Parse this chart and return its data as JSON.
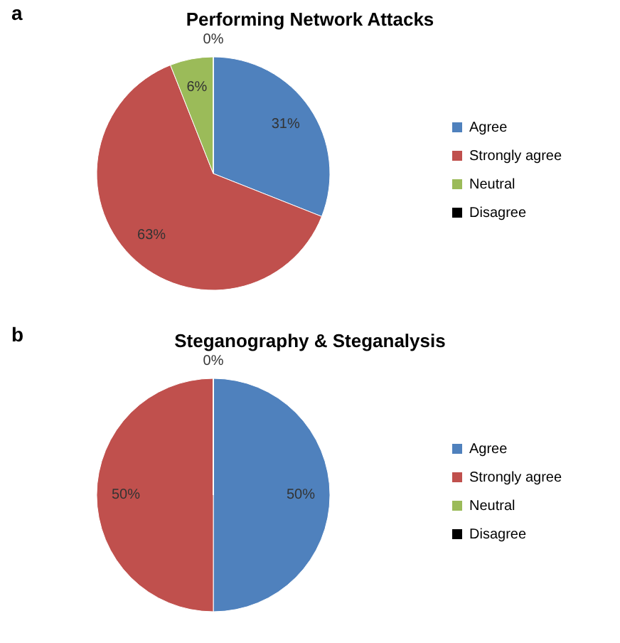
{
  "chart_data": [
    {
      "type": "pie",
      "title": "Performing Network Attacks",
      "annotations": [
        "a"
      ],
      "categories": [
        "Agree",
        "Strongly agree",
        "Neutral",
        "Disagree"
      ],
      "values": [
        31,
        63,
        6,
        0
      ],
      "colors": [
        "#4f81bd",
        "#c0504d",
        "#9bbb59",
        "#000000"
      ],
      "value_labels": [
        "31%",
        "63%",
        "6%",
        "0%"
      ],
      "legend": "right"
    },
    {
      "type": "pie",
      "title": "Steganography & Steganalysis",
      "annotations": [
        "b"
      ],
      "categories": [
        "Agree",
        "Strongly agree",
        "Neutral",
        "Disagree"
      ],
      "values": [
        50,
        50,
        0,
        0
      ],
      "colors": [
        "#4f81bd",
        "#c0504d",
        "#9bbb59",
        "#000000"
      ],
      "value_labels": [
        "50%",
        "50%",
        null,
        "0%"
      ],
      "legend": "right"
    }
  ]
}
